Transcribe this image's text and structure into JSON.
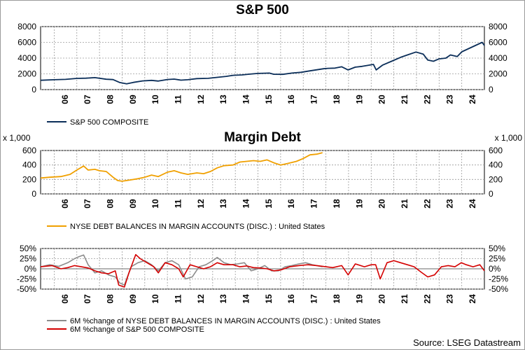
{
  "source": "Source: LSEG Datastream",
  "x_ticks": [
    "06",
    "07",
    "08",
    "09",
    "10",
    "11",
    "12",
    "13",
    "14",
    "15",
    "16",
    "17",
    "18",
    "19",
    "20",
    "21",
    "22",
    "23",
    "24"
  ],
  "chart_data": [
    {
      "type": "line",
      "title": "S&P 500",
      "x_range": [
        2005.4,
        2025.0
      ],
      "ylim": [
        0,
        8000
      ],
      "y_ticks": [
        0,
        2000,
        4000,
        6000,
        8000
      ],
      "y_tick_labels": [
        "0",
        "2000",
        "4000",
        "6000",
        "8000"
      ],
      "grid": true,
      "legend": "bottom-left",
      "series": [
        {
          "name": "S&P 500 COMPOSITE",
          "color": "#0b2e59",
          "x": [
            2005.4,
            2006.0,
            2006.5,
            2007.0,
            2007.4,
            2007.8,
            2008.3,
            2008.6,
            2008.9,
            2009.2,
            2009.5,
            2009.9,
            2010.3,
            2010.6,
            2011.0,
            2011.3,
            2011.6,
            2011.9,
            2012.3,
            2012.8,
            2013.2,
            2013.6,
            2013.9,
            2014.3,
            2014.6,
            2015.0,
            2015.5,
            2015.7,
            2016.1,
            2016.5,
            2016.9,
            2017.3,
            2017.9,
            2018.1,
            2018.4,
            2018.7,
            2018.98,
            2019.3,
            2019.6,
            2019.9,
            2020.1,
            2020.22,
            2020.5,
            2020.9,
            2021.3,
            2021.6,
            2021.98,
            2022.3,
            2022.5,
            2022.75,
            2023.0,
            2023.3,
            2023.5,
            2023.8,
            2024.0,
            2024.3,
            2024.6,
            2024.9,
            2025.0
          ],
          "y": [
            1180,
            1250,
            1300,
            1420,
            1450,
            1520,
            1320,
            1270,
            900,
            740,
            920,
            1100,
            1170,
            1080,
            1280,
            1330,
            1200,
            1250,
            1400,
            1430,
            1560,
            1680,
            1810,
            1870,
            1960,
            2050,
            2100,
            1950,
            1940,
            2100,
            2200,
            2380,
            2650,
            2700,
            2730,
            2900,
            2500,
            2850,
            2950,
            3100,
            3200,
            2500,
            3100,
            3600,
            4100,
            4400,
            4770,
            4500,
            3750,
            3600,
            3900,
            4000,
            4400,
            4200,
            4800,
            5200,
            5600,
            6000,
            5600
          ]
        }
      ]
    },
    {
      "type": "line",
      "title": "Margin Debt",
      "y_unit": "x 1,000",
      "x_range": [
        2005.4,
        2025.0
      ],
      "ylim": [
        0,
        600
      ],
      "y_ticks": [
        0,
        200,
        400,
        600
      ],
      "y_tick_labels": [
        "0",
        "200",
        "400",
        "600"
      ],
      "grid": true,
      "legend": "bottom-left",
      "series": [
        {
          "name": "NYSE DEBT BALANCES IN MARGIN ACCOUNTS (DISC.) : United States",
          "color": "#f0a000",
          "x": [
            2005.4,
            2005.8,
            2006.3,
            2006.7,
            2007.0,
            2007.3,
            2007.5,
            2007.8,
            2008.0,
            2008.3,
            2008.6,
            2008.8,
            2009.0,
            2009.3,
            2009.7,
            2010.0,
            2010.3,
            2010.6,
            2011.0,
            2011.3,
            2011.6,
            2011.9,
            2012.3,
            2012.6,
            2012.9,
            2013.2,
            2013.5,
            2013.9,
            2014.2,
            2014.5,
            2014.8,
            2015.1,
            2015.4,
            2015.7,
            2016.0,
            2016.3,
            2016.7,
            2017.0,
            2017.3,
            2017.6,
            2017.85
          ],
          "y": [
            220,
            230,
            240,
            270,
            330,
            385,
            330,
            340,
            320,
            310,
            230,
            185,
            175,
            190,
            210,
            230,
            260,
            240,
            300,
            320,
            290,
            270,
            290,
            280,
            310,
            360,
            390,
            400,
            440,
            450,
            460,
            450,
            470,
            430,
            400,
            420,
            450,
            490,
            540,
            550,
            570
          ]
        }
      ]
    },
    {
      "type": "line",
      "x_range": [
        2005.4,
        2025.0
      ],
      "ylim": [
        -50,
        50
      ],
      "y_ticks": [
        -50,
        -25,
        0,
        25,
        50
      ],
      "y_tick_labels": [
        "-50%",
        "-25%",
        "0%",
        "25%",
        "50%"
      ],
      "grid": true,
      "legend": "bottom-left",
      "series": [
        {
          "name": "6M %change of NYSE DEBT BALANCES IN MARGIN ACCOUNTS (DISC.) : United States",
          "color": "#8c8c8c",
          "x": [
            2005.4,
            2005.8,
            2006.2,
            2006.6,
            2006.9,
            2007.1,
            2007.3,
            2007.5,
            2007.8,
            2008.1,
            2008.4,
            2008.7,
            2008.9,
            2009.1,
            2009.4,
            2009.7,
            2010.0,
            2010.3,
            2010.6,
            2010.9,
            2011.2,
            2011.5,
            2011.8,
            2012.1,
            2012.4,
            2012.7,
            2013.0,
            2013.2,
            2013.5,
            2013.8,
            2014.1,
            2014.4,
            2014.7,
            2015.0,
            2015.3,
            2015.6,
            2015.9,
            2016.2,
            2016.5,
            2016.8,
            2017.1,
            2017.4,
            2017.85
          ],
          "y": [
            5,
            10,
            6,
            15,
            25,
            30,
            34,
            10,
            -10,
            -5,
            -15,
            -20,
            -35,
            -40,
            5,
            15,
            20,
            10,
            -5,
            15,
            20,
            10,
            -25,
            -20,
            5,
            10,
            20,
            28,
            15,
            10,
            12,
            15,
            -5,
            0,
            8,
            -5,
            -5,
            5,
            8,
            12,
            15,
            10,
            5
          ]
        },
        {
          "name": "6M %change of S&P 500 COMPOSITE",
          "color": "#d40000",
          "x": [
            2005.4,
            2005.9,
            2006.3,
            2006.6,
            2006.9,
            2007.2,
            2007.5,
            2007.8,
            2008.1,
            2008.4,
            2008.7,
            2008.85,
            2009.1,
            2009.3,
            2009.6,
            2009.8,
            2010.1,
            2010.4,
            2010.6,
            2010.9,
            2011.2,
            2011.5,
            2011.7,
            2012.0,
            2012.3,
            2012.6,
            2012.9,
            2013.2,
            2013.5,
            2013.9,
            2014.2,
            2014.5,
            2014.8,
            2015.1,
            2015.4,
            2015.7,
            2016.0,
            2016.4,
            2016.8,
            2017.2,
            2017.6,
            2018.0,
            2018.3,
            2018.7,
            2018.98,
            2019.3,
            2019.7,
            2020.0,
            2020.2,
            2020.4,
            2020.7,
            2021.0,
            2021.3,
            2021.6,
            2021.9,
            2022.2,
            2022.5,
            2022.8,
            2023.1,
            2023.4,
            2023.7,
            2023.98,
            2024.2,
            2024.5,
            2024.8,
            2025.0
          ],
          "y": [
            5,
            8,
            0,
            3,
            8,
            5,
            2,
            -5,
            -10,
            -12,
            -5,
            -40,
            -45,
            -10,
            35,
            25,
            15,
            5,
            -10,
            15,
            10,
            0,
            -20,
            10,
            5,
            0,
            5,
            15,
            10,
            10,
            5,
            7,
            3,
            2,
            0,
            -5,
            -3,
            5,
            8,
            10,
            8,
            5,
            3,
            8,
            -15,
            12,
            5,
            10,
            10,
            -25,
            15,
            20,
            15,
            10,
            5,
            -8,
            -20,
            -15,
            5,
            8,
            5,
            15,
            10,
            5,
            10,
            -5
          ]
        }
      ]
    }
  ]
}
